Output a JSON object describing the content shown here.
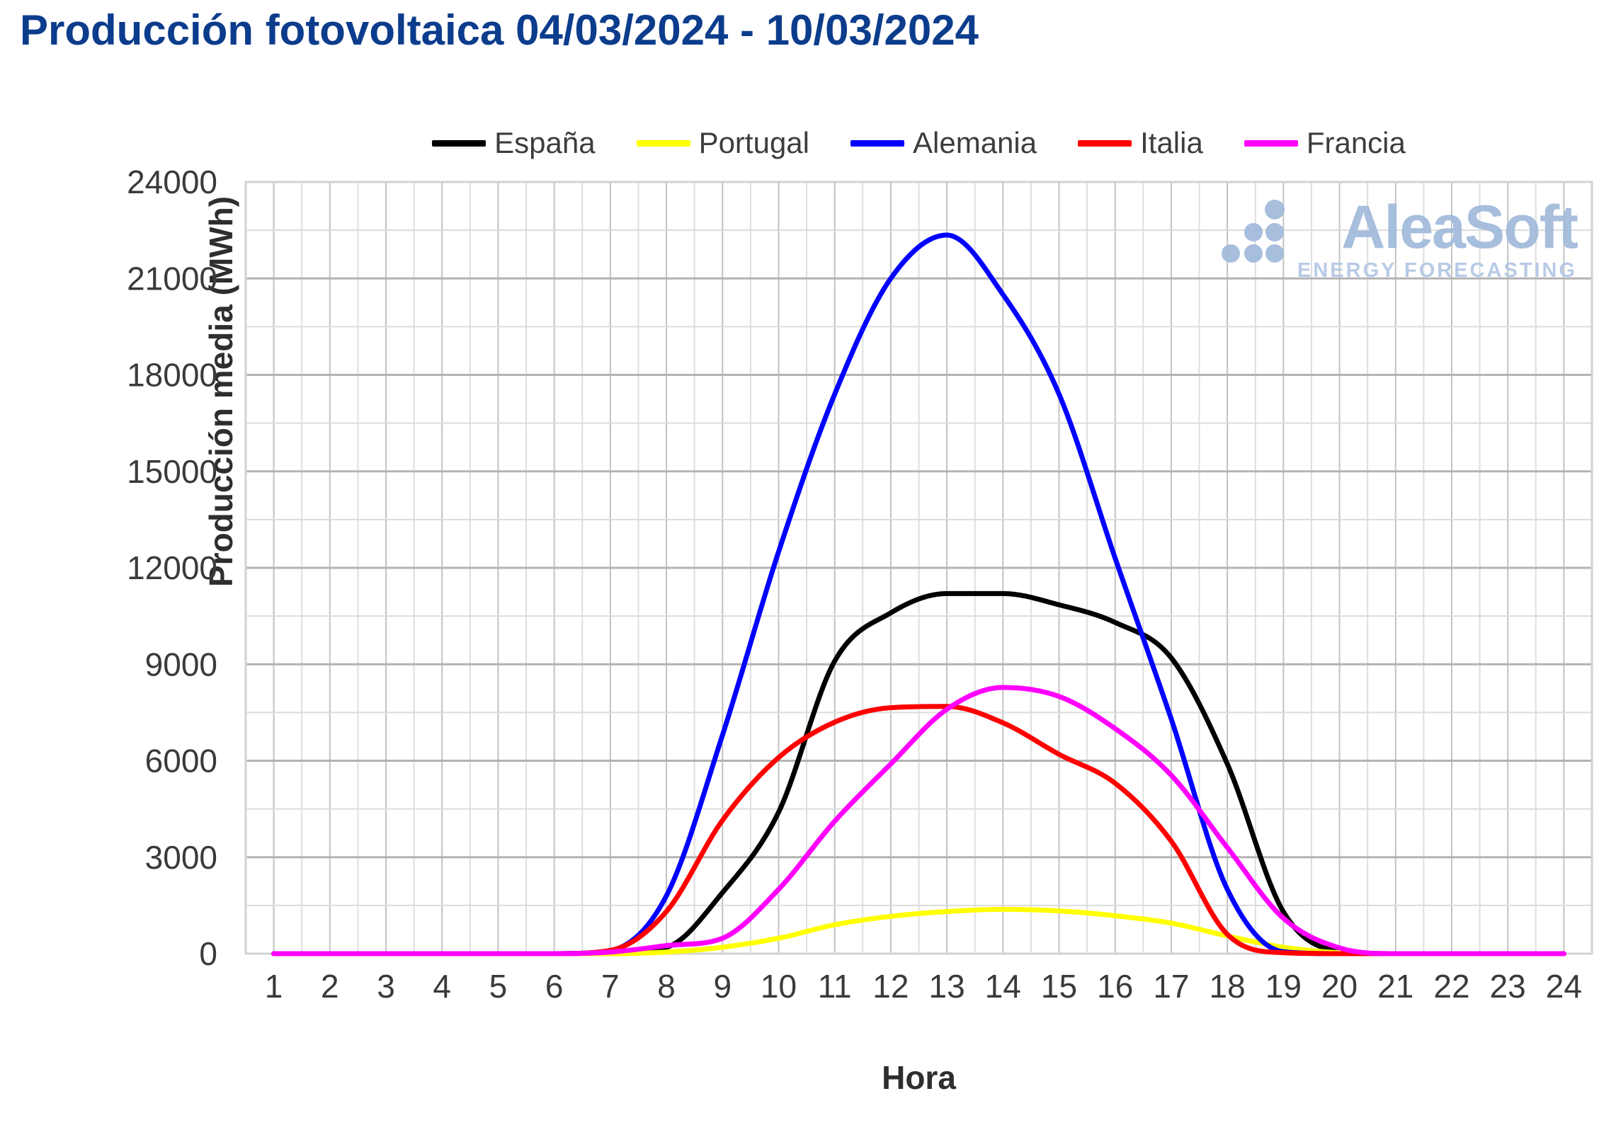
{
  "title": "Producción fotovoltaica 04/03/2024 - 10/03/2024",
  "watermark": {
    "name": "AleaSoft",
    "tagline": "ENERGY FORECASTING"
  },
  "colors": {
    "title": "#0c3c8c",
    "legend_text": "#3d3d3d",
    "tick_text": "#3a3a3a",
    "grid_major": "#b3b3b3",
    "grid_minor": "#dcdcdc",
    "grid_hour": "#c2c2c2",
    "grid_halfhour": "#dedede",
    "plot_border": "#d2d2d2",
    "logo_blue": "#a3bbdc"
  },
  "chart_data": {
    "type": "line",
    "title": "Producción fotovoltaica 04/03/2024 - 10/03/2024",
    "xlabel": "Hora",
    "ylabel": "Producción media (MWh)",
    "x": [
      1,
      2,
      3,
      4,
      5,
      6,
      7,
      8,
      9,
      10,
      11,
      12,
      13,
      14,
      15,
      16,
      17,
      18,
      19,
      20,
      21,
      22,
      23,
      24
    ],
    "xlim": [
      0.5,
      24.5
    ],
    "ylim": [
      0,
      24000
    ],
    "ytick_step": 3000,
    "ytick_minor_step": 1500,
    "xtick_minor_step": 0.5,
    "grid": "major+minor",
    "legend_position": "top",
    "series": [
      {
        "name": "España",
        "color": "#000000",
        "values": [
          0,
          0,
          0,
          0,
          0,
          0,
          50,
          200,
          1900,
          4400,
          9100,
          10600,
          11200,
          11200,
          10850,
          10300,
          9200,
          5900,
          1300,
          80,
          0,
          0,
          0,
          0
        ]
      },
      {
        "name": "Portugal",
        "color": "#ffff00",
        "values": [
          0,
          0,
          0,
          0,
          0,
          0,
          0,
          50,
          200,
          480,
          900,
          1160,
          1310,
          1380,
          1330,
          1180,
          950,
          550,
          200,
          30,
          0,
          0,
          0,
          0
        ]
      },
      {
        "name": "Alemania",
        "color": "#0000ff",
        "values": [
          0,
          0,
          0,
          0,
          0,
          0,
          100,
          1800,
          6800,
          12500,
          17400,
          21000,
          22350,
          20500,
          17400,
          12300,
          7300,
          2000,
          60,
          0,
          0,
          0,
          0,
          0
        ]
      },
      {
        "name": "Italia",
        "color": "#ff0000",
        "values": [
          0,
          0,
          0,
          0,
          0,
          0,
          100,
          1310,
          4150,
          6100,
          7200,
          7650,
          7690,
          7180,
          6200,
          5300,
          3500,
          600,
          30,
          0,
          0,
          0,
          0,
          0
        ]
      },
      {
        "name": "Francia",
        "color": "#ff00ff",
        "values": [
          0,
          0,
          0,
          0,
          0,
          0,
          50,
          250,
          480,
          2000,
          4120,
          5900,
          7600,
          8280,
          8000,
          7000,
          5550,
          3300,
          1100,
          180,
          0,
          0,
          0,
          0
        ]
      }
    ]
  }
}
